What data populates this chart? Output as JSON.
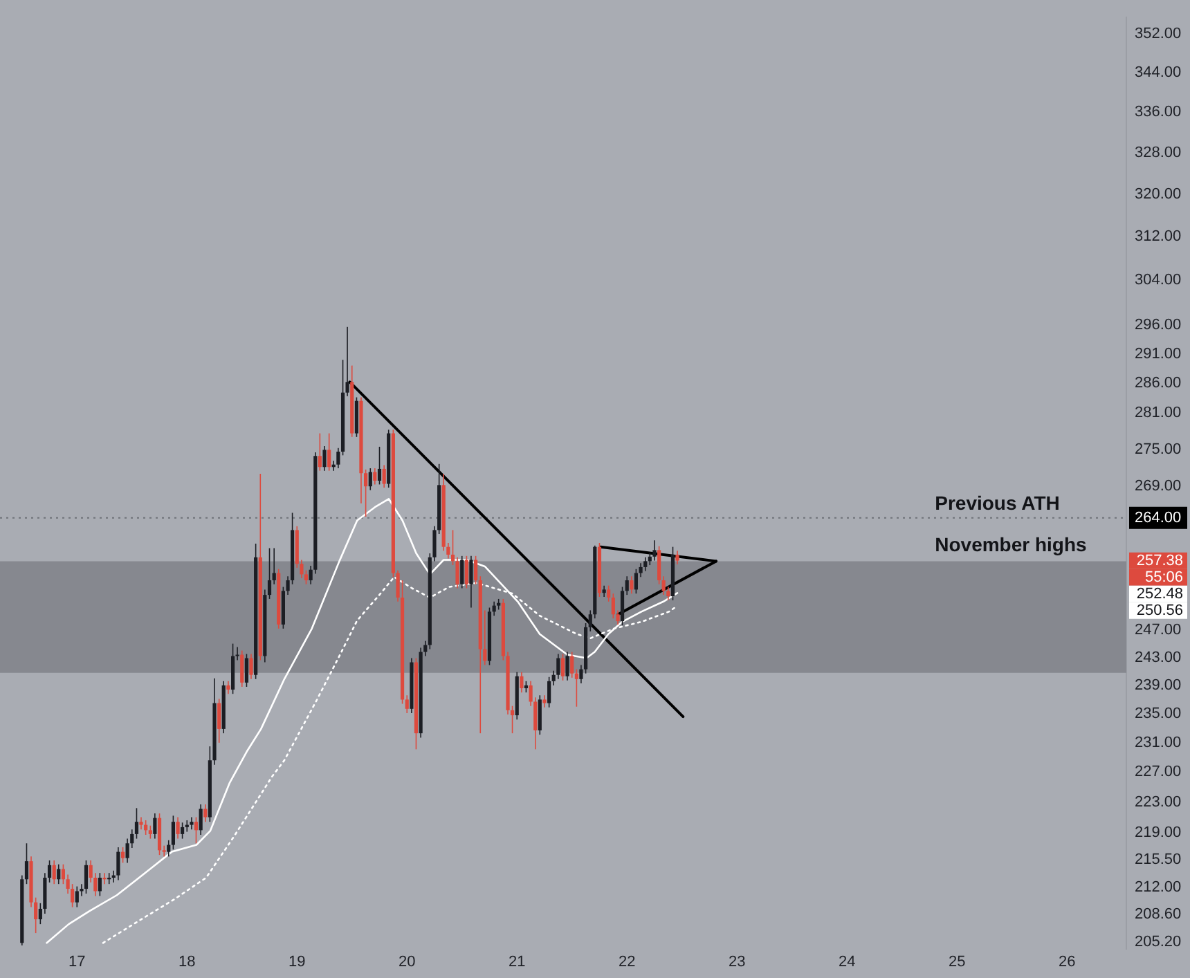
{
  "chart_data": {
    "type": "candlestick",
    "x": [
      16.5,
      16.542,
      16.583,
      16.625,
      16.667,
      16.708,
      16.75,
      16.792,
      16.833,
      16.875,
      16.917,
      16.958,
      17,
      17.042,
      17.083,
      17.125,
      17.167,
      17.208,
      17.25,
      17.292,
      17.333,
      17.375,
      17.417,
      17.458,
      17.5,
      17.542,
      17.583,
      17.625,
      17.667,
      17.708,
      17.75,
      17.792,
      17.833,
      17.875,
      17.917,
      17.958,
      18,
      18.042,
      18.083,
      18.125,
      18.167,
      18.208,
      18.25,
      18.292,
      18.333,
      18.375,
      18.417,
      18.458,
      18.5,
      18.542,
      18.583,
      18.625,
      18.667,
      18.708,
      18.75,
      18.792,
      18.833,
      18.875,
      18.917,
      18.958,
      19,
      19.042,
      19.083,
      19.125,
      19.167,
      19.208,
      19.25,
      19.292,
      19.333,
      19.375,
      19.417,
      19.458,
      19.5,
      19.542,
      19.583,
      19.625,
      19.667,
      19.708,
      19.75,
      19.792,
      19.833,
      19.875,
      19.917,
      19.958,
      20,
      20.042,
      20.083,
      20.125,
      20.167,
      20.208,
      20.25,
      20.292,
      20.333,
      20.375,
      20.417,
      20.458,
      20.5,
      20.542,
      20.583,
      20.625,
      20.667,
      20.708,
      20.75,
      20.792,
      20.833,
      20.875,
      20.917,
      20.958,
      21,
      21.042,
      21.083,
      21.125,
      21.167,
      21.208,
      21.25,
      21.292,
      21.333,
      21.375,
      21.417,
      21.458,
      21.5,
      21.542,
      21.583,
      21.625,
      21.667,
      21.708,
      21.75,
      21.792,
      21.833,
      21.875,
      21.917,
      21.958,
      22,
      22.042,
      22.083,
      22.125,
      22.167,
      22.208,
      22.25,
      22.292,
      22.333,
      22.375,
      22.417,
      22.458
    ],
    "ohlc": [
      [
        205.1,
        213.5,
        204.8,
        213.0
      ],
      [
        213.0,
        217.6,
        212.4,
        215.3
      ],
      [
        215.3,
        215.9,
        209.5,
        210.1
      ],
      [
        210.1,
        210.7,
        206.3,
        208.0
      ],
      [
        208.0,
        210.0,
        207.4,
        209.3
      ],
      [
        209.3,
        213.8,
        208.7,
        213.2
      ],
      [
        213.2,
        215.4,
        212.6,
        214.8
      ],
      [
        214.8,
        215.4,
        212.4,
        213.0
      ],
      [
        213.0,
        214.9,
        212.4,
        214.3
      ],
      [
        214.3,
        214.9,
        212.4,
        213.0
      ],
      [
        213.0,
        213.6,
        211.2,
        211.8
      ],
      [
        211.8,
        212.4,
        209.5,
        210.1
      ],
      [
        210.1,
        212.1,
        209.5,
        211.5
      ],
      [
        211.5,
        212.4,
        210.9,
        211.8
      ],
      [
        211.8,
        215.4,
        211.2,
        214.8
      ],
      [
        214.8,
        215.4,
        212.6,
        213.2
      ],
      [
        213.2,
        213.8,
        210.9,
        211.5
      ],
      [
        211.5,
        213.8,
        210.9,
        213.2
      ],
      [
        213.2,
        213.8,
        212.4,
        213.0
      ],
      [
        213.0,
        213.8,
        212.4,
        213.2
      ],
      [
        213.2,
        214.1,
        212.6,
        213.5
      ],
      [
        213.5,
        217.1,
        212.9,
        216.5
      ],
      [
        216.5,
        217.1,
        215.1,
        215.7
      ],
      [
        215.7,
        218.2,
        215.1,
        217.6
      ],
      [
        217.6,
        219.4,
        217.0,
        218.8
      ],
      [
        218.8,
        222.2,
        218.2,
        220.4
      ],
      [
        220.4,
        221.0,
        219.4,
        220.0
      ],
      [
        220.0,
        220.6,
        218.7,
        219.3
      ],
      [
        219.3,
        219.9,
        218.2,
        218.8
      ],
      [
        218.8,
        221.5,
        218.2,
        220.9
      ],
      [
        220.9,
        221.5,
        216.1,
        216.7
      ],
      [
        216.7,
        217.3,
        215.9,
        216.5
      ],
      [
        216.5,
        218.0,
        215.9,
        217.4
      ],
      [
        217.4,
        221.2,
        216.8,
        220.4
      ],
      [
        220.4,
        221.0,
        218.2,
        218.8
      ],
      [
        218.8,
        220.3,
        218.2,
        219.7
      ],
      [
        219.7,
        220.6,
        219.1,
        220.0
      ],
      [
        220.0,
        221.0,
        219.4,
        220.4
      ],
      [
        220.4,
        221.0,
        217.6,
        219.3
      ],
      [
        219.3,
        222.7,
        218.7,
        222.1
      ],
      [
        222.1,
        222.7,
        220.4,
        221.0
      ],
      [
        221.0,
        230.5,
        220.4,
        228.6
      ],
      [
        228.6,
        240.0,
        228.0,
        236.5
      ],
      [
        236.5,
        237.1,
        231.0,
        232.9
      ],
      [
        232.9,
        239.6,
        232.3,
        239.0
      ],
      [
        239.0,
        239.6,
        237.8,
        238.4
      ],
      [
        238.4,
        245.0,
        237.8,
        243.2
      ],
      [
        243.2,
        244.5,
        242.6,
        243.4
      ],
      [
        243.4,
        244.0,
        238.8,
        239.4
      ],
      [
        239.4,
        243.5,
        238.8,
        242.9
      ],
      [
        242.9,
        243.5,
        239.9,
        240.5
      ],
      [
        240.5,
        260.0,
        239.9,
        257.9
      ],
      [
        257.9,
        271.0,
        242.6,
        243.2
      ],
      [
        243.2,
        253.0,
        242.3,
        252.2
      ],
      [
        252.2,
        259.3,
        251.6,
        254.4
      ],
      [
        254.4,
        259.3,
        253.8,
        255.5
      ],
      [
        255.5,
        256.1,
        247.2,
        247.8
      ],
      [
        247.8,
        253.4,
        247.2,
        252.8
      ],
      [
        252.8,
        255.0,
        252.2,
        254.4
      ],
      [
        254.4,
        264.8,
        253.8,
        262.1
      ],
      [
        262.1,
        262.7,
        256.3,
        256.9
      ],
      [
        256.9,
        257.5,
        254.7,
        255.3
      ],
      [
        255.3,
        255.9,
        253.8,
        254.4
      ],
      [
        254.4,
        256.6,
        253.8,
        256.0
      ],
      [
        256.0,
        274.5,
        255.4,
        273.9
      ],
      [
        273.9,
        277.6,
        271.5,
        272.1
      ],
      [
        272.1,
        275.5,
        271.5,
        274.9
      ],
      [
        274.9,
        277.6,
        271.5,
        272.1
      ],
      [
        272.1,
        273.1,
        271.5,
        272.5
      ],
      [
        272.5,
        275.2,
        271.9,
        274.6
      ],
      [
        274.6,
        290.0,
        274.0,
        284.4
      ],
      [
        284.4,
        295.7,
        283.8,
        286.2
      ],
      [
        286.2,
        289.0,
        277.0,
        277.6
      ],
      [
        277.6,
        283.6,
        277.0,
        283.0
      ],
      [
        283.0,
        283.6,
        266.3,
        271.1
      ],
      [
        271.1,
        271.7,
        264.2,
        269.0
      ],
      [
        269.0,
        271.9,
        268.4,
        271.3
      ],
      [
        271.3,
        271.9,
        269.3,
        269.9
      ],
      [
        269.9,
        275.4,
        269.3,
        271.8
      ],
      [
        271.8,
        272.4,
        268.8,
        269.4
      ],
      [
        269.4,
        278.2,
        268.8,
        277.6
      ],
      [
        277.6,
        278.2,
        254.9,
        255.5
      ],
      [
        255.5,
        255.9,
        251.2,
        251.8
      ],
      [
        251.8,
        254.4,
        236.4,
        237.0
      ],
      [
        237.0,
        237.6,
        235.1,
        235.7
      ],
      [
        235.7,
        242.9,
        235.1,
        242.3
      ],
      [
        242.3,
        242.9,
        230.1,
        232.3
      ],
      [
        232.3,
        244.4,
        231.7,
        243.8
      ],
      [
        243.8,
        245.4,
        243.2,
        244.8
      ],
      [
        244.8,
        258.5,
        244.2,
        257.9
      ],
      [
        257.9,
        262.7,
        257.3,
        262.1
      ],
      [
        262.1,
        272.6,
        261.5,
        269.2
      ],
      [
        269.2,
        271.0,
        258.9,
        259.5
      ],
      [
        259.5,
        260.1,
        257.7,
        258.3
      ],
      [
        258.3,
        262.1,
        256.7,
        257.3
      ],
      [
        257.3,
        257.9,
        253.2,
        253.8
      ],
      [
        253.8,
        258.1,
        253.2,
        257.5
      ],
      [
        257.5,
        258.1,
        253.2,
        253.8
      ],
      [
        253.8,
        258.1,
        250.3,
        257.5
      ],
      [
        257.5,
        258.1,
        253.8,
        254.4
      ],
      [
        254.4,
        255.0,
        232.3,
        244.2
      ],
      [
        244.2,
        249.9,
        241.9,
        242.5
      ],
      [
        242.5,
        250.3,
        241.9,
        249.7
      ],
      [
        249.7,
        251.2,
        249.1,
        250.6
      ],
      [
        250.6,
        251.6,
        250.0,
        251.0
      ],
      [
        251.0,
        251.6,
        242.6,
        243.2
      ],
      [
        243.2,
        243.8,
        234.9,
        235.5
      ],
      [
        235.5,
        236.1,
        232.3,
        234.8
      ],
      [
        234.8,
        240.9,
        234.2,
        240.3
      ],
      [
        240.3,
        240.9,
        238.0,
        238.6
      ],
      [
        238.6,
        239.6,
        238.0,
        239.0
      ],
      [
        239.0,
        239.6,
        236.1,
        236.7
      ],
      [
        236.7,
        237.3,
        230.1,
        232.7
      ],
      [
        232.7,
        237.6,
        232.1,
        237.0
      ],
      [
        237.0,
        237.6,
        235.9,
        236.5
      ],
      [
        236.5,
        240.2,
        235.9,
        239.6
      ],
      [
        239.6,
        241.1,
        239.0,
        240.5
      ],
      [
        240.5,
        243.5,
        239.9,
        242.9
      ],
      [
        242.9,
        243.5,
        239.7,
        240.3
      ],
      [
        240.3,
        243.8,
        239.7,
        243.2
      ],
      [
        243.2,
        243.8,
        240.1,
        240.7
      ],
      [
        240.7,
        241.3,
        236.0,
        239.9
      ],
      [
        239.9,
        241.9,
        239.3,
        241.3
      ],
      [
        241.3,
        248.0,
        240.7,
        247.4
      ],
      [
        247.4,
        249.9,
        246.8,
        249.3
      ],
      [
        249.3,
        259.7,
        248.7,
        259.5
      ],
      [
        259.5,
        260.1,
        251.9,
        252.5
      ],
      [
        252.5,
        253.6,
        251.9,
        253.0
      ],
      [
        253.0,
        253.6,
        251.2,
        251.8
      ],
      [
        251.8,
        252.4,
        248.7,
        249.3
      ],
      [
        249.3,
        249.9,
        247.8,
        248.3
      ],
      [
        248.3,
        253.4,
        247.7,
        252.8
      ],
      [
        252.8,
        255.0,
        252.2,
        254.4
      ],
      [
        254.4,
        255.0,
        252.4,
        253.0
      ],
      [
        253.0,
        256.1,
        252.4,
        255.5
      ],
      [
        255.5,
        257.0,
        254.9,
        256.4
      ],
      [
        256.4,
        257.9,
        255.8,
        257.3
      ],
      [
        257.3,
        258.6,
        256.7,
        258.0
      ],
      [
        258.0,
        260.5,
        257.4,
        259.0
      ],
      [
        259.0,
        259.6,
        253.8,
        254.4
      ],
      [
        254.4,
        255.0,
        252.2,
        252.8
      ],
      [
        252.8,
        253.4,
        251.4,
        252.0
      ],
      [
        252.0,
        259.5,
        251.4,
        258.3
      ],
      [
        258.3,
        258.9,
        256.8,
        257.38
      ]
    ],
    "series": [
      {
        "type": "line",
        "color": "#ffffff",
        "x": [
          16.725,
          16.925,
          17.112,
          17.362,
          17.674,
          17.861,
          18.086,
          18.211,
          18.386,
          18.548,
          18.673,
          18.798,
          18.885,
          19.135,
          19.385,
          19.547,
          19.709,
          19.834,
          19.959,
          20.084,
          20.208,
          20.333,
          20.546,
          20.708,
          21.007,
          21.207,
          21.457,
          21.632,
          21.707,
          21.831,
          21.956,
          22.131,
          22.331,
          22.458
        ],
        "values": [
          205.1,
          207.4,
          209.0,
          211.0,
          214.4,
          216.5,
          217.4,
          219.2,
          225.5,
          229.9,
          232.9,
          237.0,
          239.9,
          247.2,
          257.3,
          263.6,
          265.7,
          267.0,
          263.6,
          258.5,
          255.3,
          257.5,
          257.5,
          256.5,
          251.2,
          246.4,
          243.4,
          242.9,
          243.8,
          246.4,
          248.2,
          249.7,
          251.2,
          252.48
        ]
      },
      {
        "type": "line",
        "color": "#ffffff",
        "line_style": "dotted",
        "x": [
          17.237,
          17.549,
          17.886,
          18.174,
          18.423,
          18.635,
          18.773,
          18.885,
          19.172,
          19.385,
          19.547,
          19.759,
          19.884,
          20.046,
          20.208,
          20.383,
          20.633,
          20.958,
          21.207,
          21.544,
          21.669,
          21.881,
          22.131,
          22.381,
          22.458
        ],
        "values": [
          205.1,
          207.7,
          210.5,
          213.2,
          218.4,
          223.2,
          226.4,
          228.6,
          236.7,
          243.2,
          248.4,
          252.4,
          254.9,
          253.2,
          251.8,
          253.4,
          254.0,
          252.4,
          249.1,
          246.4,
          245.8,
          247.2,
          248.2,
          249.7,
          250.56
        ]
      },
      {
        "type": "line",
        "color": "#000000",
        "x": [
          19.48,
          22.51
        ],
        "values": [
          286.2,
          234.6
        ]
      },
      {
        "type": "line",
        "color": "#000000",
        "x": [
          21.76,
          22.81
        ],
        "values": [
          259.5,
          257.3
        ]
      },
      {
        "type": "line",
        "color": "#000000",
        "x": [
          21.92,
          22.81
        ],
        "values": [
          249.3,
          257.3
        ]
      }
    ],
    "log": true,
    "xlim": [
      16.3,
      26.54
    ],
    "xticks": [
      17,
      18,
      19,
      20,
      21,
      22,
      23,
      24,
      25,
      26
    ],
    "ylim": [
      204.4,
      355.4
    ],
    "yticks": [
      {
        "value": 352,
        "label": "352.00"
      },
      {
        "value": 344,
        "label": "344.00"
      },
      {
        "value": 336,
        "label": "336.00"
      },
      {
        "value": 328,
        "label": "328.00"
      },
      {
        "value": 320,
        "label": "320.00"
      },
      {
        "value": 312,
        "label": "312.00"
      },
      {
        "value": 304,
        "label": "304.00"
      },
      {
        "value": 296,
        "label": "296.00"
      },
      {
        "value": 291,
        "label": "291.00"
      },
      {
        "value": 286,
        "label": "286.00"
      },
      {
        "value": 281,
        "label": "281.00"
      },
      {
        "value": 275,
        "label": "275.00"
      },
      {
        "value": 269,
        "label": "269.00"
      },
      {
        "value": 264,
        "label": "264.00"
      },
      {
        "value": 247,
        "label": "247.00"
      },
      {
        "value": 243,
        "label": "243.00"
      },
      {
        "value": 239,
        "label": "239.00"
      },
      {
        "value": 235,
        "label": "235.00"
      },
      {
        "value": 231,
        "label": "231.00"
      },
      {
        "value": 227,
        "label": "227.00"
      },
      {
        "value": 223,
        "label": "223.00"
      },
      {
        "value": 219,
        "label": "219.00"
      },
      {
        "value": 215.5,
        "label": "215.50"
      },
      {
        "value": 212,
        "label": "212.00"
      },
      {
        "value": 208.6,
        "label": "208.60"
      },
      {
        "value": 205.2,
        "label": "205.20"
      }
    ],
    "ref_lines": [
      {
        "axis": "y",
        "value": 264,
        "label": "Previous ATH",
        "color": "#6e7178",
        "line_style": "dotted"
      }
    ],
    "bands": [
      {
        "axis": "y",
        "from": 240.8,
        "to": 257.3,
        "label": "November highs",
        "color": "#86888f"
      }
    ],
    "annotations": [
      "257.38",
      "55:06",
      "252.48",
      "250.56"
    ],
    "grid": false,
    "legend": false
  }
}
